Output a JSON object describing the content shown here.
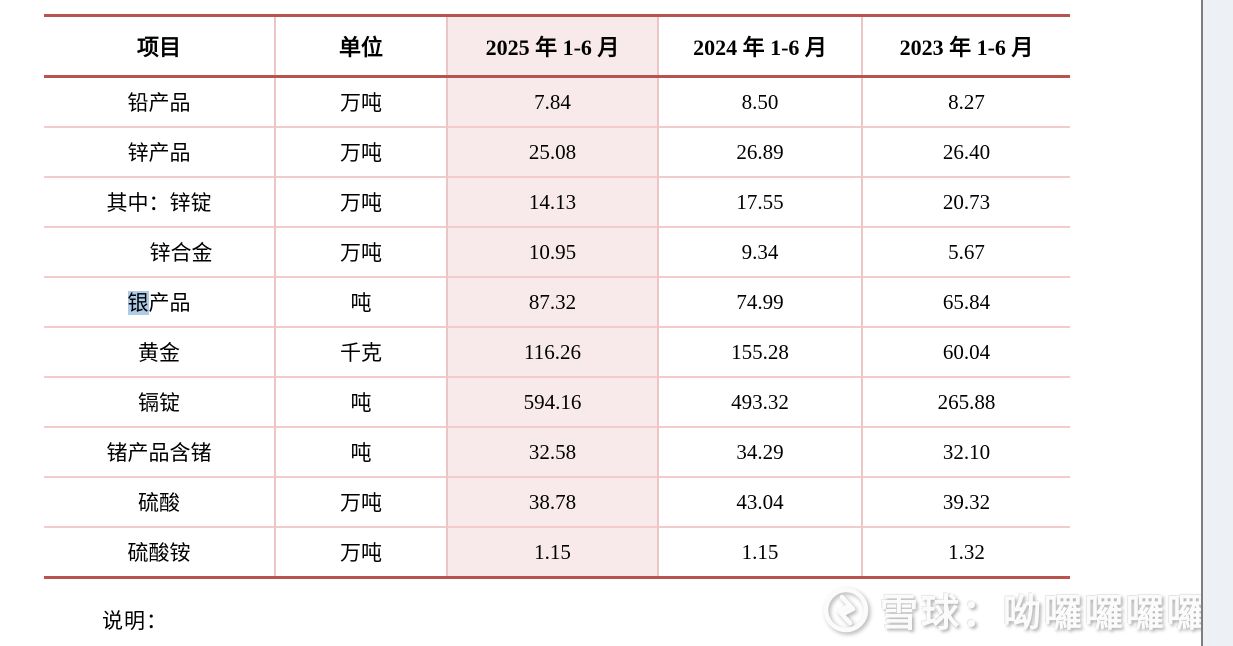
{
  "table": {
    "columns": [
      {
        "label": "项目"
      },
      {
        "label": "单位"
      },
      {
        "label": "2025 年 1-6 月",
        "highlighted": true
      },
      {
        "label": "2024 年 1-6 月"
      },
      {
        "label": "2023 年 1-6 月"
      }
    ],
    "rows": [
      {
        "item": "铅产品",
        "unit": "万吨",
        "v2025": "7.84",
        "v2024": "8.50",
        "v2023": "8.27"
      },
      {
        "item": "锌产品",
        "unit": "万吨",
        "v2025": "25.08",
        "v2024": "26.89",
        "v2023": "26.40"
      },
      {
        "item": "其中：锌锭",
        "unit": "万吨",
        "v2025": "14.13",
        "v2024": "17.55",
        "v2023": "20.73"
      },
      {
        "item": "锌合金",
        "unit": "万吨",
        "v2025": "10.95",
        "v2024": "9.34",
        "v2023": "5.67",
        "indent": true
      },
      {
        "item": "银产品",
        "unit": "吨",
        "v2025": "87.32",
        "v2024": "74.99",
        "v2023": "65.84",
        "highlight_prefix": "银"
      },
      {
        "item": "黄金",
        "unit": "千克",
        "v2025": "116.26",
        "v2024": "155.28",
        "v2023": "60.04"
      },
      {
        "item": "镉锭",
        "unit": "吨",
        "v2025": "594.16",
        "v2024": "493.32",
        "v2023": "265.88"
      },
      {
        "item": "锗产品含锗",
        "unit": "吨",
        "v2025": "32.58",
        "v2024": "34.29",
        "v2023": "32.10"
      },
      {
        "item": "硫酸",
        "unit": "万吨",
        "v2025": "38.78",
        "v2024": "43.04",
        "v2023": "39.32"
      },
      {
        "item": "硫酸铵",
        "unit": "万吨",
        "v2025": "1.15",
        "v2024": "1.15",
        "v2023": "1.32"
      }
    ]
  },
  "footer": {
    "note_label": "说明："
  },
  "watermark": {
    "brand": "雪球",
    "separator": "：",
    "username": "呦囉囉囉囉囉",
    "logo": "xueqiu-circle-logo"
  },
  "colors": {
    "thick_border": "#b9534f",
    "thin_border": "#ecc5c4",
    "highlight_column_fill": "#f8eaea",
    "search_highlight": "#aecbe8",
    "gutter_fill": "#edf0f4"
  }
}
